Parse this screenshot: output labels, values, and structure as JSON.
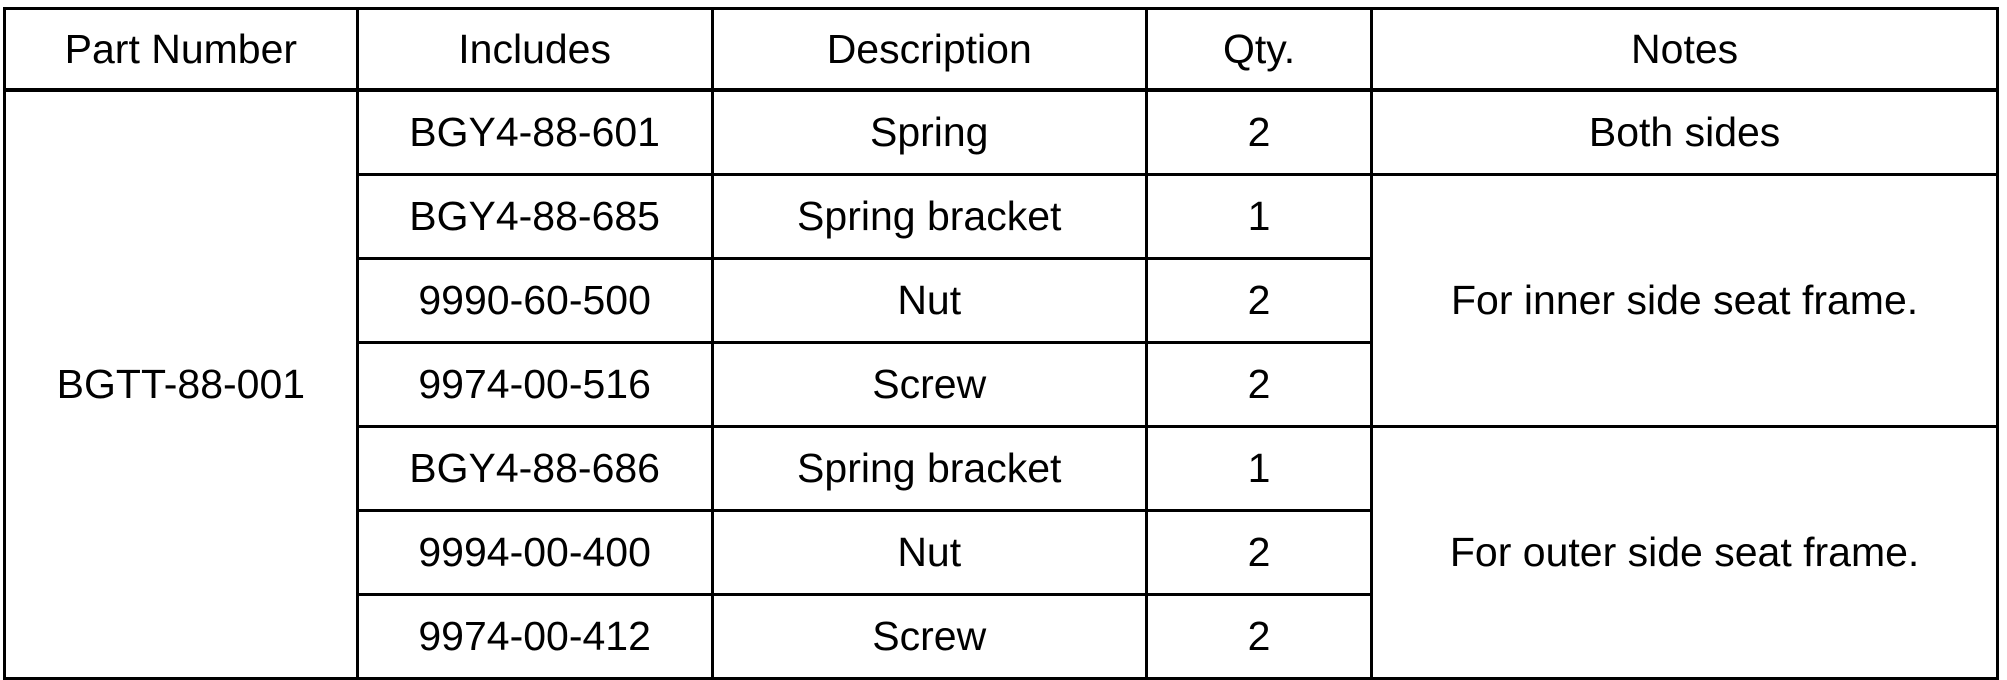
{
  "table": {
    "headers": [
      "Part Number",
      "Includes",
      "Description",
      "Qty.",
      "Notes"
    ],
    "part_number": "BGTT-88-001",
    "rows": [
      {
        "includes": "BGY4-88-601",
        "description": "Spring",
        "qty": "2",
        "notes": "Both sides"
      },
      {
        "includes": "BGY4-88-685",
        "description": "Spring bracket",
        "qty": "1",
        "notes": "For inner side seat frame."
      },
      {
        "includes": "9990-60-500",
        "description": "Nut",
        "qty": "2"
      },
      {
        "includes": "9974-00-516",
        "description": "Screw",
        "qty": "2"
      },
      {
        "includes": "BGY4-88-686",
        "description": "Spring bracket",
        "qty": "1",
        "notes": "For outer side seat frame."
      },
      {
        "includes": "9994-00-400",
        "description": "Nut",
        "qty": "2"
      },
      {
        "includes": "9974-00-412",
        "description": "Screw",
        "qty": "2"
      }
    ],
    "colors": {
      "border": "#000000",
      "text": "#000000",
      "background": "#ffffff"
    }
  }
}
